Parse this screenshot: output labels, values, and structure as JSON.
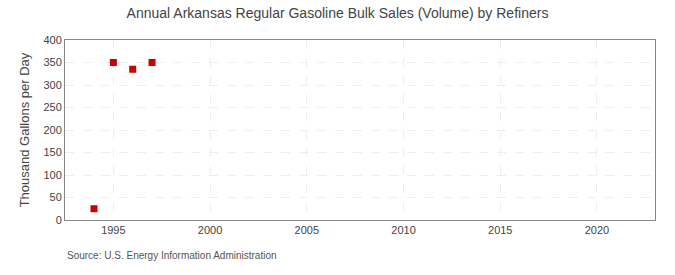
{
  "chart_data": {
    "type": "scatter",
    "title": "Annual Arkansas Regular Gasoline Bulk Sales (Volume) by Refiners",
    "ylabel": "Thousand Gallons per Day",
    "source": "Source: U.S. Energy Information Administration",
    "x": [
      1994,
      1995,
      1996,
      1997
    ],
    "values": [
      25,
      350,
      335,
      350
    ],
    "color": "#cc0000",
    "marker": "square",
    "xlim": [
      1992.5,
      2023
    ],
    "xticks": [
      1995,
      2000,
      2005,
      2010,
      2015,
      2020
    ],
    "ylim": [
      0,
      400
    ],
    "yticks": [
      0,
      50,
      100,
      150,
      200,
      250,
      300,
      350,
      400
    ],
    "grid": true
  }
}
